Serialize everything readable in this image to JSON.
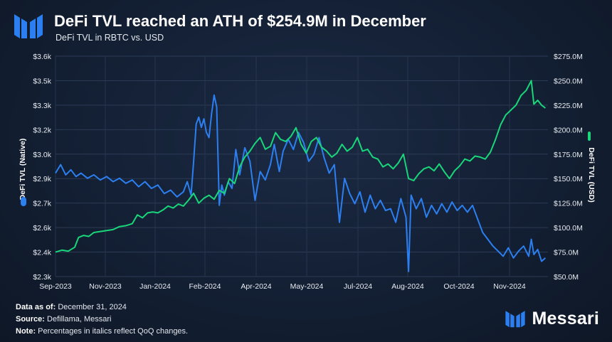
{
  "header": {
    "title": "DeFi TVL reached an ATH of $254.9M in December",
    "subtitle": "DeFi TVL in RBTC vs. USD"
  },
  "footer": {
    "data_as_of_label": "Data as of:",
    "data_as_of_value": "December 31, 2024",
    "source_label": "Source:",
    "source_value": "Defillama, Messari",
    "note_label": "Note:",
    "note_value": "Percentages in italics reflect QoQ changes."
  },
  "brand": {
    "name": "Messari",
    "logo_icon": "messari-logo-icon"
  },
  "chart_data": {
    "type": "line",
    "x_tick_labels": [
      "Sep-2023",
      "Nov-2023",
      "Jan-2024",
      "Feb-2024",
      "Apr-2024",
      "May-2024",
      "Jul-2024",
      "Aug-2024",
      "Oct-2024",
      "Nov-2024"
    ],
    "y_left": {
      "label": "DeFi TVL (Native)",
      "ticks": [
        "$2.3k",
        "$2.4k",
        "$2.6k",
        "$2.7k",
        "$2.9k",
        "$3.0k",
        "$3.2k",
        "$3.3k",
        "$3.5k",
        "$3.6k"
      ],
      "range": [
        2300,
        3600
      ]
    },
    "y_right": {
      "label": "DeFi TVL (USD)",
      "ticks": [
        "$50.0M",
        "$75.0M",
        "$100.0M",
        "$125.0M",
        "$150.0M",
        "$175.0M",
        "$200.0M",
        "$225.0M",
        "$250.0M",
        "$275.0M"
      ],
      "range": [
        50,
        275
      ]
    },
    "grid": true,
    "series": [
      {
        "name": "DeFi TVL (Native)",
        "axis": "left",
        "color": "#2b7ff0",
        "points": [
          [
            0,
            2910
          ],
          [
            4,
            2960
          ],
          [
            8,
            2900
          ],
          [
            12,
            2930
          ],
          [
            16,
            2890
          ],
          [
            20,
            2910
          ],
          [
            25,
            2880
          ],
          [
            30,
            2900
          ],
          [
            35,
            2870
          ],
          [
            40,
            2890
          ],
          [
            45,
            2860
          ],
          [
            50,
            2880
          ],
          [
            55,
            2850
          ],
          [
            60,
            2870
          ],
          [
            65,
            2830
          ],
          [
            70,
            2860
          ],
          [
            75,
            2820
          ],
          [
            80,
            2840
          ],
          [
            85,
            2790
          ],
          [
            90,
            2810
          ],
          [
            95,
            2770
          ],
          [
            100,
            2800
          ],
          [
            103,
            2860
          ],
          [
            106,
            2780
          ],
          [
            108,
            2980
          ],
          [
            110,
            3200
          ],
          [
            112,
            3240
          ],
          [
            114,
            3180
          ],
          [
            116,
            3230
          ],
          [
            118,
            3150
          ],
          [
            120,
            3120
          ],
          [
            122,
            3260
          ],
          [
            124,
            3370
          ],
          [
            126,
            3300
          ],
          [
            128,
            2720
          ],
          [
            130,
            2840
          ],
          [
            132,
            2780
          ],
          [
            135,
            2860
          ],
          [
            138,
            2820
          ],
          [
            141,
            3050
          ],
          [
            144,
            2900
          ],
          [
            148,
            3060
          ],
          [
            152,
            2980
          ],
          [
            156,
            2750
          ],
          [
            160,
            2920
          ],
          [
            164,
            2870
          ],
          [
            168,
            2960
          ],
          [
            171,
            3080
          ],
          [
            175,
            2920
          ],
          [
            178,
            3040
          ],
          [
            182,
            3110
          ],
          [
            186,
            3050
          ],
          [
            190,
            3150
          ],
          [
            194,
            3090
          ],
          [
            198,
            2980
          ],
          [
            202,
            3020
          ],
          [
            206,
            3120
          ],
          [
            210,
            3000
          ],
          [
            214,
            2910
          ],
          [
            218,
            2960
          ],
          [
            222,
            2620
          ],
          [
            226,
            2880
          ],
          [
            230,
            2790
          ],
          [
            234,
            2730
          ],
          [
            238,
            2800
          ],
          [
            242,
            2680
          ],
          [
            246,
            2780
          ],
          [
            250,
            2700
          ],
          [
            254,
            2750
          ],
          [
            258,
            2690
          ],
          [
            262,
            2700
          ],
          [
            266,
            2620
          ],
          [
            270,
            2760
          ],
          [
            274,
            2650
          ],
          [
            276,
            2330
          ],
          [
            278,
            2780
          ],
          [
            282,
            2700
          ],
          [
            286,
            2760
          ],
          [
            290,
            2650
          ],
          [
            294,
            2720
          ],
          [
            298,
            2670
          ],
          [
            302,
            2730
          ],
          [
            306,
            2680
          ],
          [
            310,
            2740
          ],
          [
            314,
            2690
          ],
          [
            318,
            2720
          ],
          [
            322,
            2680
          ],
          [
            326,
            2720
          ],
          [
            330,
            2640
          ],
          [
            334,
            2560
          ],
          [
            338,
            2520
          ],
          [
            342,
            2480
          ],
          [
            346,
            2450
          ],
          [
            350,
            2420
          ],
          [
            354,
            2470
          ],
          [
            358,
            2410
          ],
          [
            362,
            2450
          ],
          [
            366,
            2480
          ],
          [
            370,
            2420
          ],
          [
            372,
            2520
          ],
          [
            374,
            2430
          ],
          [
            377,
            2460
          ],
          [
            380,
            2390
          ],
          [
            383,
            2410
          ]
        ]
      },
      {
        "name": "DeFi TVL (USD)",
        "axis": "right",
        "color": "#19d67a",
        "points": [
          [
            0,
            75
          ],
          [
            5,
            77
          ],
          [
            10,
            76
          ],
          [
            15,
            80
          ],
          [
            18,
            90
          ],
          [
            22,
            92
          ],
          [
            26,
            91
          ],
          [
            30,
            95
          ],
          [
            35,
            96
          ],
          [
            40,
            97
          ],
          [
            45,
            98
          ],
          [
            50,
            101
          ],
          [
            55,
            102
          ],
          [
            60,
            104
          ],
          [
            64,
            113
          ],
          [
            68,
            110
          ],
          [
            72,
            115
          ],
          [
            76,
            116
          ],
          [
            80,
            115
          ],
          [
            84,
            118
          ],
          [
            88,
            122
          ],
          [
            92,
            120
          ],
          [
            96,
            124
          ],
          [
            100,
            122
          ],
          [
            104,
            128
          ],
          [
            108,
            135
          ],
          [
            112,
            125
          ],
          [
            116,
            130
          ],
          [
            120,
            133
          ],
          [
            124,
            129
          ],
          [
            128,
            138
          ],
          [
            132,
            135
          ],
          [
            136,
            150
          ],
          [
            140,
            145
          ],
          [
            144,
            162
          ],
          [
            148,
            172
          ],
          [
            152,
            178
          ],
          [
            156,
            186
          ],
          [
            160,
            192
          ],
          [
            164,
            180
          ],
          [
            168,
            183
          ],
          [
            172,
            197
          ],
          [
            176,
            190
          ],
          [
            180,
            188
          ],
          [
            184,
            193
          ],
          [
            188,
            202
          ],
          [
            192,
            185
          ],
          [
            196,
            176
          ],
          [
            200,
            188
          ],
          [
            204,
            192
          ],
          [
            208,
            182
          ],
          [
            212,
            178
          ],
          [
            216,
            172
          ],
          [
            220,
            176
          ],
          [
            224,
            185
          ],
          [
            228,
            178
          ],
          [
            232,
            182
          ],
          [
            236,
            192
          ],
          [
            240,
            178
          ],
          [
            244,
            180
          ],
          [
            248,
            172
          ],
          [
            252,
            170
          ],
          [
            256,
            162
          ],
          [
            260,
            165
          ],
          [
            264,
            160
          ],
          [
            268,
            166
          ],
          [
            272,
            175
          ],
          [
            276,
            150
          ],
          [
            280,
            148
          ],
          [
            284,
            155
          ],
          [
            288,
            160
          ],
          [
            292,
            162
          ],
          [
            296,
            158
          ],
          [
            300,
            165
          ],
          [
            304,
            157
          ],
          [
            308,
            150
          ],
          [
            312,
            158
          ],
          [
            316,
            163
          ],
          [
            320,
            170
          ],
          [
            324,
            168
          ],
          [
            328,
            173
          ],
          [
            332,
            172
          ],
          [
            336,
            170
          ],
          [
            340,
            177
          ],
          [
            344,
            190
          ],
          [
            348,
            205
          ],
          [
            352,
            215
          ],
          [
            356,
            220
          ],
          [
            360,
            225
          ],
          [
            364,
            235
          ],
          [
            368,
            240
          ],
          [
            372,
            250
          ],
          [
            374,
            226
          ],
          [
            377,
            230
          ],
          [
            380,
            225
          ],
          [
            383,
            222
          ]
        ]
      }
    ]
  }
}
